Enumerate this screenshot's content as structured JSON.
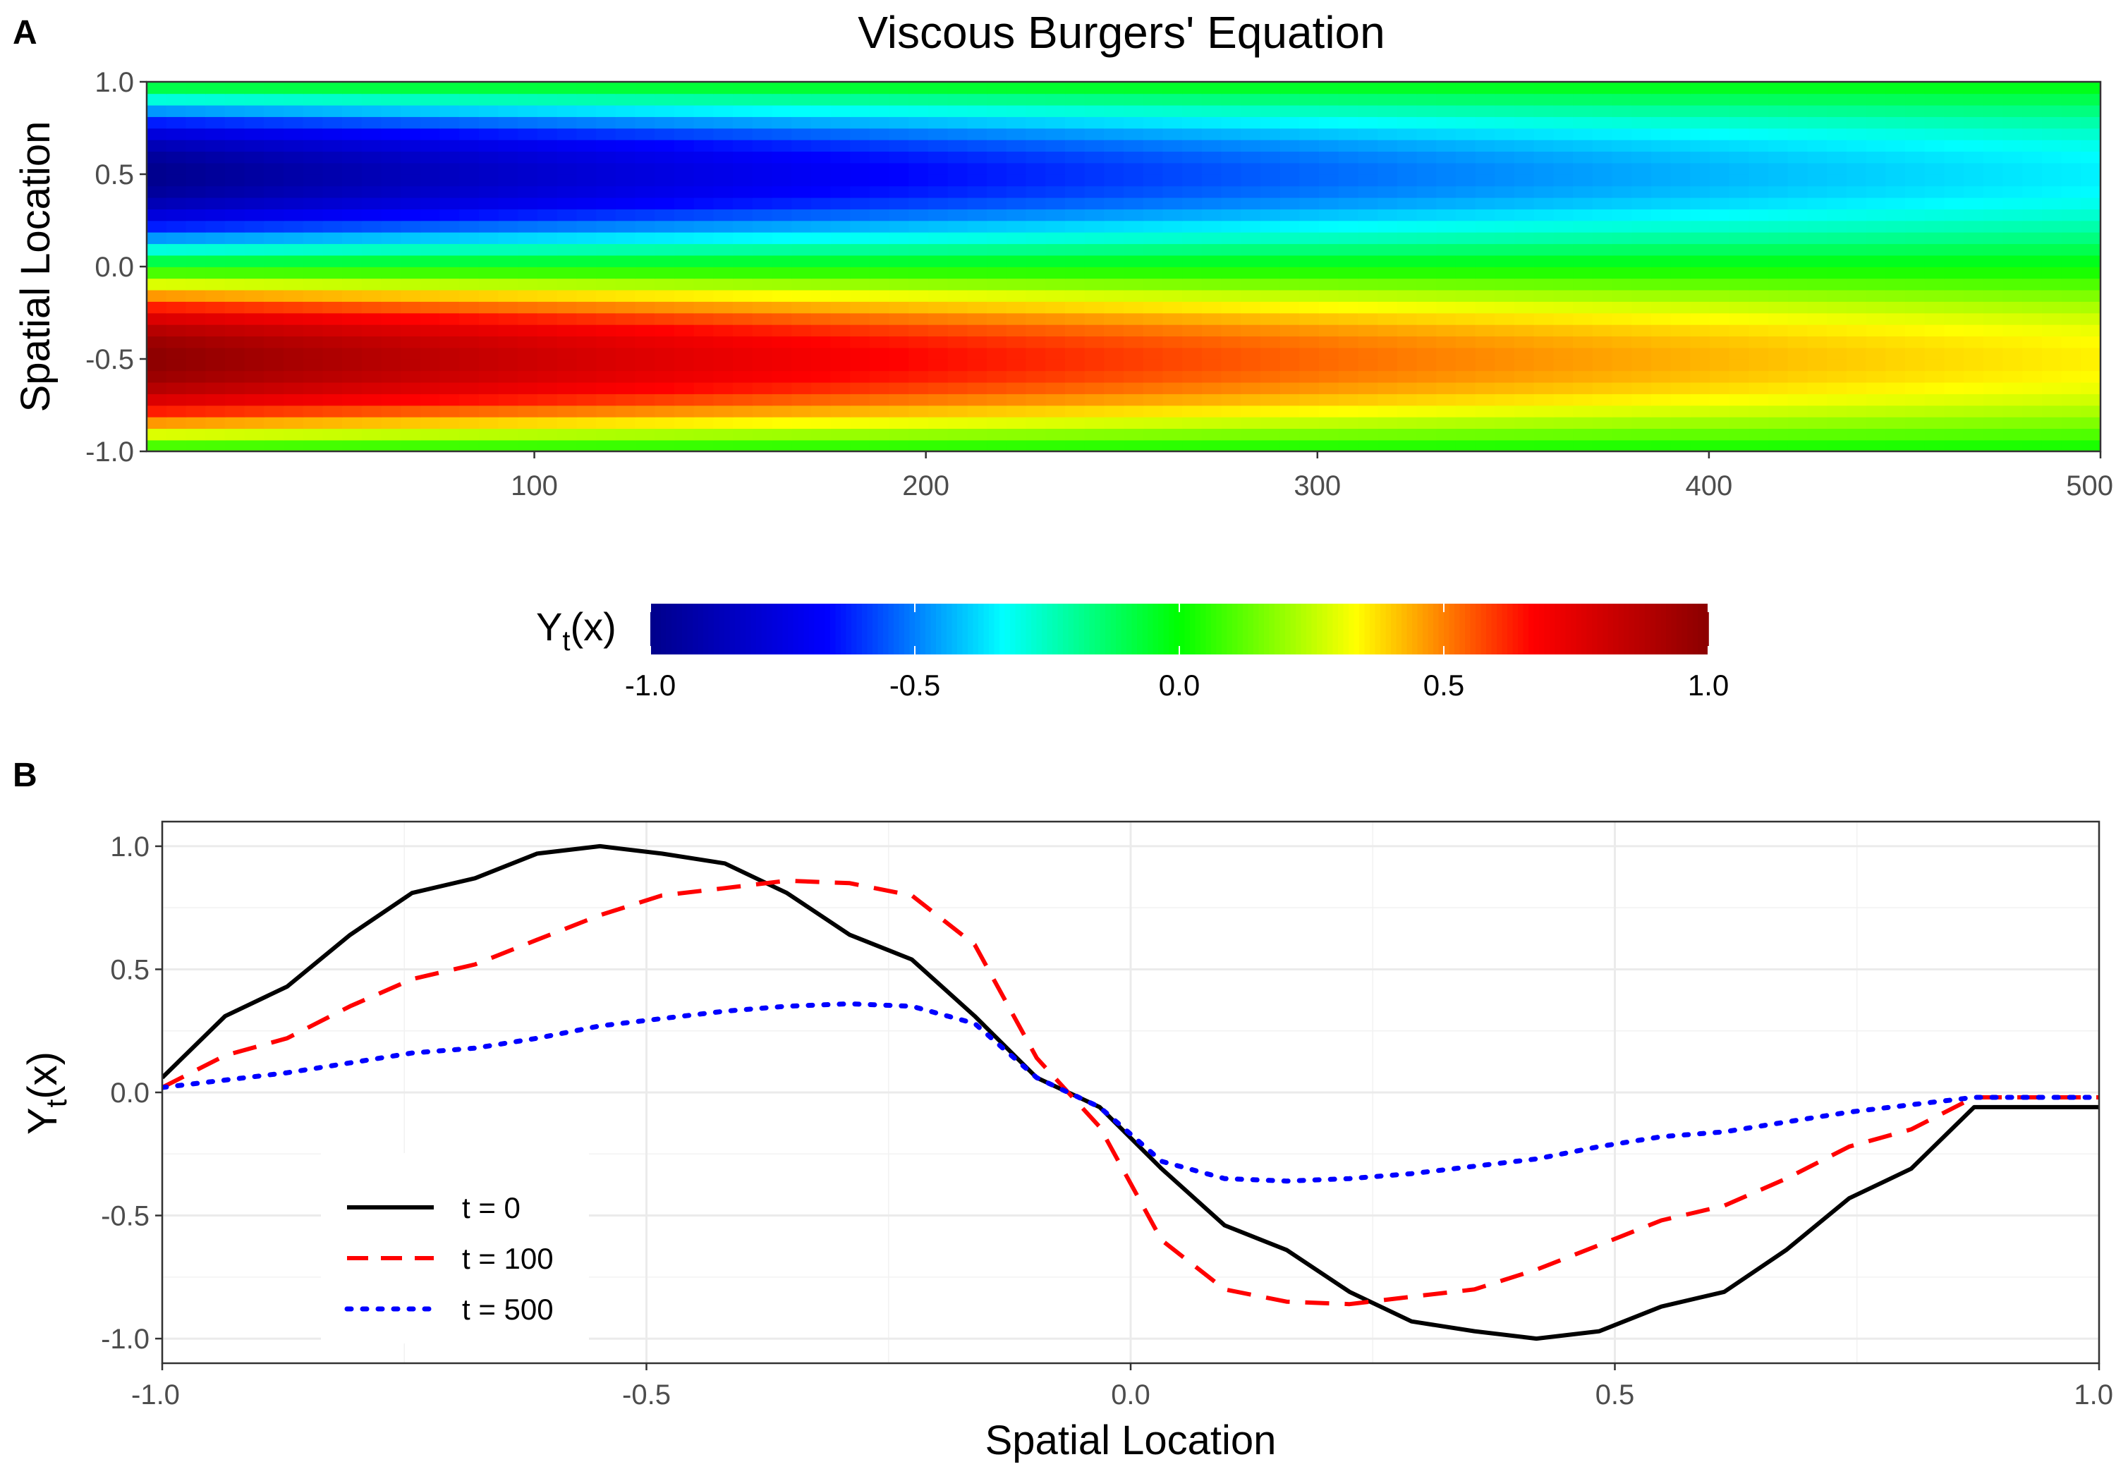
{
  "chart_data": [
    {
      "panel": "A",
      "type": "heatmap",
      "title": "Viscous Burgers' Equation",
      "ylabel": "Spatial Location",
      "xlabel": "",
      "xlim": [
        1,
        500
      ],
      "ylim": [
        -1.0,
        1.0
      ],
      "x_ticks": [
        "100",
        "200",
        "300",
        "400",
        "500"
      ],
      "x_tick_values": [
        100,
        200,
        300,
        400,
        500
      ],
      "y_ticks": [
        "1.0",
        "0.5",
        "0.0",
        "-0.5",
        "-1.0"
      ],
      "y_tick_values": [
        1.0,
        0.5,
        0.0,
        -0.5,
        -1.0
      ],
      "n_space": 32,
      "initial_condition": "-sin(pi*x)",
      "colorbar": {
        "label_main": "Y",
        "label_sub": "t",
        "label_tail": "(x)",
        "range": [
          -1.0,
          1.0
        ],
        "ticks": [
          "-1.0",
          "-0.5",
          "0.0",
          "0.5",
          "1.0"
        ],
        "tick_values": [
          -1.0,
          -0.5,
          0.0,
          0.5,
          1.0
        ],
        "colors": [
          "#00008b",
          "#0000ff",
          "#00ffff",
          "#00ff00",
          "#ffff00",
          "#ff0000",
          "#8b0000"
        ]
      }
    },
    {
      "panel": "B",
      "type": "line",
      "xlabel": "Spatial Location",
      "ylabel_main": "Y",
      "ylabel_sub": "t",
      "ylabel_tail": "(x)",
      "xlim": [
        -1.0,
        1.0
      ],
      "ylim": [
        -1.1,
        1.1
      ],
      "x_ticks": [
        "-1.0",
        "-0.5",
        "0.0",
        "0.5",
        "1.0"
      ],
      "x_tick_values": [
        -1.0,
        -0.5,
        0.0,
        0.5,
        1.0
      ],
      "y_ticks": [
        "1.0",
        "0.5",
        "0.0",
        "-0.5",
        "-1.0"
      ],
      "y_tick_values": [
        1.0,
        0.5,
        0.0,
        -0.5,
        -1.0
      ],
      "grid": true,
      "legend_position": "bottom-left",
      "x": [
        -1.0,
        -0.935,
        -0.871,
        -0.806,
        -0.742,
        -0.677,
        -0.613,
        -0.548,
        -0.484,
        -0.419,
        -0.355,
        -0.29,
        -0.226,
        -0.161,
        -0.097,
        -0.032,
        0.032,
        0.097,
        0.161,
        0.226,
        0.29,
        0.355,
        0.419,
        0.484,
        0.548,
        0.613,
        0.677,
        0.742,
        0.806,
        0.871,
        0.935,
        1.0
      ],
      "series": [
        {
          "name": "t = 0",
          "color": "#000000",
          "dash": "solid",
          "values": [
            0.06,
            0.31,
            0.43,
            0.64,
            0.81,
            0.87,
            0.97,
            1.0,
            0.97,
            0.93,
            0.81,
            0.64,
            0.54,
            0.31,
            0.06,
            -0.06,
            -0.31,
            -0.54,
            -0.64,
            -0.81,
            -0.93,
            -0.97,
            -1.0,
            -0.97,
            -0.87,
            -0.81,
            -0.64,
            -0.43,
            -0.31,
            -0.06,
            -0.06,
            -0.06
          ]
        },
        {
          "name": "t = 100",
          "color": "#ff0000",
          "dash": "dashed",
          "values": [
            0.02,
            0.15,
            0.22,
            0.35,
            0.46,
            0.52,
            0.62,
            0.72,
            0.8,
            0.83,
            0.86,
            0.85,
            0.8,
            0.6,
            0.14,
            -0.14,
            -0.6,
            -0.8,
            -0.85,
            -0.86,
            -0.83,
            -0.8,
            -0.72,
            -0.62,
            -0.52,
            -0.46,
            -0.35,
            -0.22,
            -0.15,
            -0.02,
            -0.02,
            -0.02
          ]
        },
        {
          "name": "t = 500",
          "color": "#0000ff",
          "dash": "dotted",
          "values": [
            0.02,
            0.05,
            0.08,
            0.12,
            0.16,
            0.18,
            0.22,
            0.27,
            0.3,
            0.33,
            0.35,
            0.36,
            0.35,
            0.28,
            0.06,
            -0.06,
            -0.28,
            -0.35,
            -0.36,
            -0.35,
            -0.33,
            -0.3,
            -0.27,
            -0.22,
            -0.18,
            -0.16,
            -0.12,
            -0.08,
            -0.05,
            -0.02,
            -0.02,
            -0.02
          ]
        }
      ]
    }
  ]
}
